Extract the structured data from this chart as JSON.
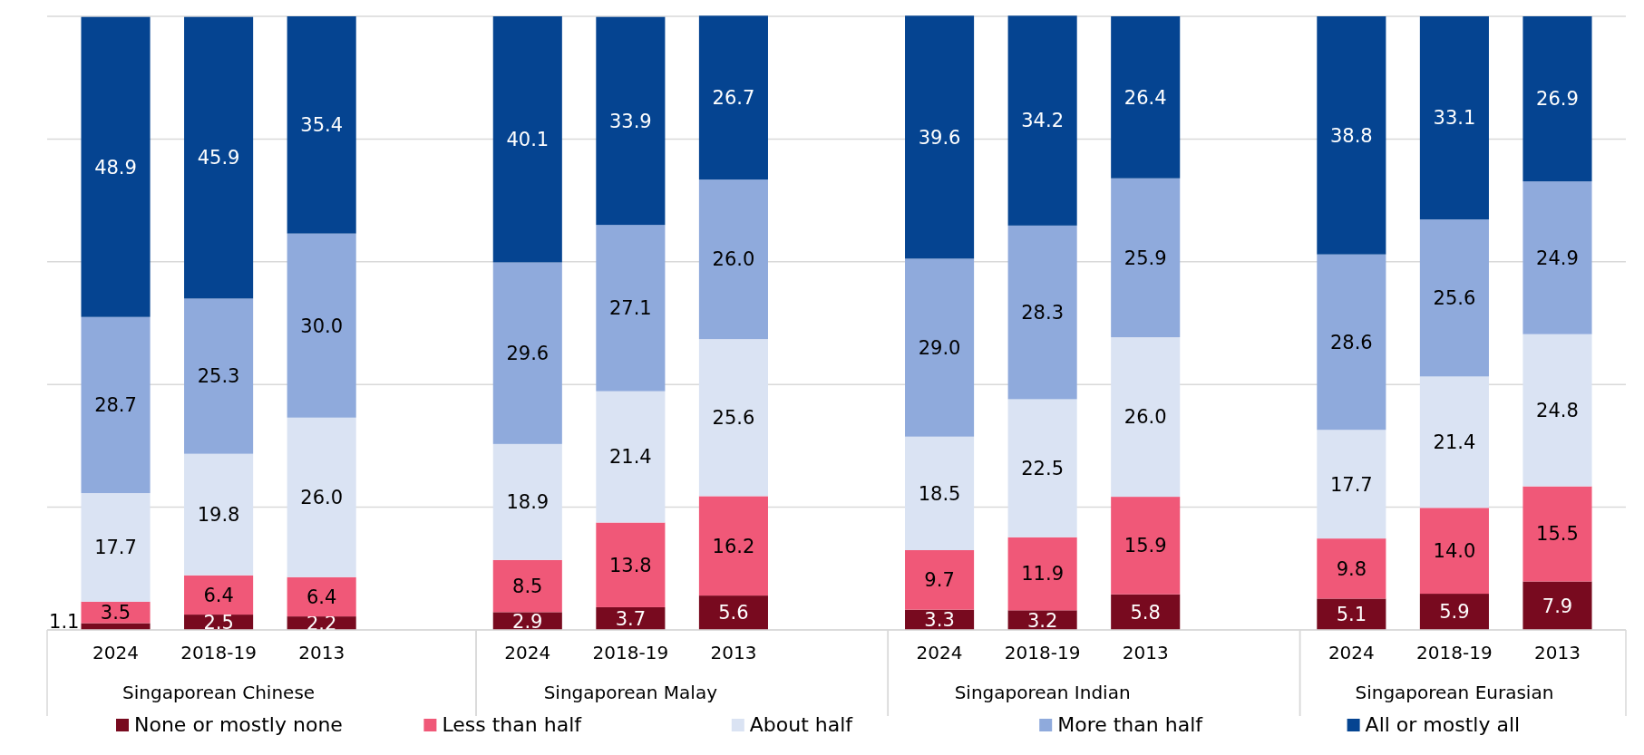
{
  "chart_data": {
    "type": "bar",
    "stacked": true,
    "categories": [
      "2024",
      "2018-19",
      "2013",
      null,
      "2024",
      "2018-19",
      "2013",
      null,
      "2024",
      "2018-19",
      "2013",
      null,
      "2024",
      "2018-19",
      "2013"
    ],
    "series": [
      {
        "name": "None or mostly none",
        "color": "#780a1f",
        "values": [
          1.1,
          2.5,
          2.2,
          null,
          2.9,
          3.7,
          5.6,
          null,
          3.3,
          3.2,
          5.8,
          null,
          5.1,
          5.9,
          7.9
        ]
      },
      {
        "name": "Less than half",
        "color": "#f05878",
        "values": [
          3.5,
          6.4,
          6.4,
          null,
          8.5,
          13.8,
          16.2,
          null,
          9.7,
          11.9,
          15.9,
          null,
          9.8,
          14.0,
          15.5
        ],
        "value_labels": [
          "3.5",
          "6.4",
          "6.4",
          null,
          "8.5",
          "13.8",
          "16.2",
          null,
          "9.7",
          "11.9",
          "15.9",
          null,
          "9.8",
          "14.0",
          "15.5"
        ]
      },
      {
        "name": "About half",
        "color": "#dae3f3",
        "values": [
          17.7,
          19.8,
          26.0,
          null,
          18.9,
          21.4,
          25.6,
          null,
          18.5,
          22.5,
          26.0,
          null,
          17.7,
          21.4,
          24.8
        ],
        "value_labels": [
          "17.7",
          "19.8",
          "26.0",
          null,
          "18.9",
          "21.4",
          "25.6",
          null,
          "18.5",
          "22.5",
          "26.0",
          null,
          "17.7",
          "21.4",
          "24.8"
        ]
      },
      {
        "name": "More than half",
        "color": "#8faadc",
        "values": [
          28.7,
          25.3,
          30.0,
          null,
          29.6,
          27.1,
          26.0,
          null,
          29.0,
          28.3,
          25.9,
          null,
          28.6,
          25.6,
          24.9
        ],
        "value_labels": [
          "28.7",
          "25.3",
          "30.0",
          null,
          "29.6",
          "27.1",
          "26.0",
          null,
          "29.0",
          "28.3",
          "25.9",
          null,
          "28.6",
          "25.6",
          "24.9"
        ]
      },
      {
        "name": "All or mostly all",
        "color": "#054491",
        "values": [
          48.9,
          45.9,
          35.4,
          null,
          40.1,
          33.9,
          26.7,
          null,
          39.6,
          34.2,
          26.4,
          null,
          38.8,
          33.1,
          26.9
        ]
      }
    ],
    "ylim": [
      0,
      100
    ],
    "yticks": [
      {
        "value": 0,
        "label": null
      },
      {
        "value": 20,
        "label": null
      },
      {
        "value": 40,
        "label": null
      },
      {
        "value": 60,
        "label": null
      },
      {
        "value": 80,
        "label": null
      },
      {
        "value": 100,
        "label": null
      }
    ],
    "tick_labels": "x",
    "grid": "y",
    "data_labels": true,
    "legend": "bottom",
    "annotations": [
      "Singaporean Chinese",
      "Singaporean Malay",
      "Singaporean Indian",
      "Singaporean Eurasian"
    ]
  }
}
